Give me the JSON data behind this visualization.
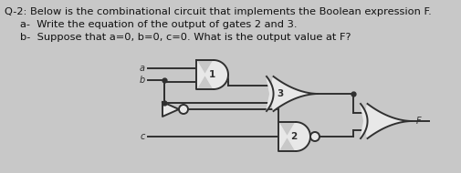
{
  "title_line1": "Q-2: Below is the combinational circuit that implements the Boolean expression F.",
  "title_line2": "a-  Write the equation of the output of gates 2 and 3.",
  "title_line3": "b-  Suppose that a=0, b=0, c=0. What is the output value at F?",
  "bg_color": "#c8c8c8",
  "line_color": "#303030",
  "gate_fill": "#e8e8e8",
  "font_size_title": 8.2,
  "font_size_label": 7.0,
  "lw": 1.4
}
